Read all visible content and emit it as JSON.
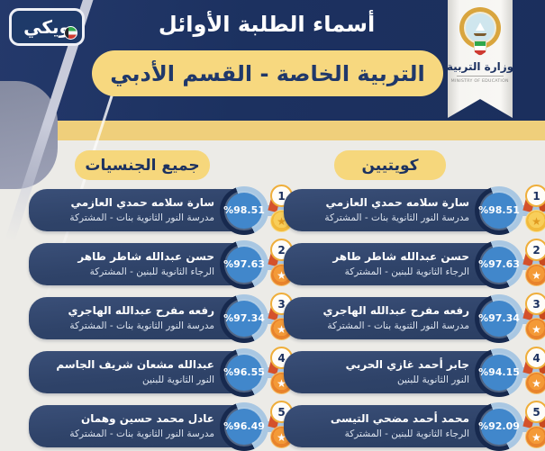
{
  "page": {
    "background": "#ecebe7",
    "navy": "#1c3160",
    "yellow": "#f2d17c",
    "blue_percent": "#4187cb",
    "medal_orange": "#e8832c",
    "medal_gold": "#f2ba3c"
  },
  "watermark_logo": {
    "text": "ويكي",
    "icon": "kuwait-flag-icon"
  },
  "header": {
    "title": "أسماء الطلبة الأوائل",
    "subtitle": "التربية الخاصة - القسم الأدبي"
  },
  "ministry_ribbon": {
    "emblem": "kuwait-coat-of-arms-icon",
    "name_ar": "وزارة التربية",
    "name_en": "MINISTRY OF EDUCATION"
  },
  "columns": {
    "right": {
      "title": "كويتيين",
      "entries": [
        {
          "rank": "1",
          "name": "سارة سلامه حمدي العازمي",
          "school": "مدرسة النور الثانوية بنات - المشتركة",
          "percent": "%98.51"
        },
        {
          "rank": "2",
          "name": "حسن عبدالله شاطر طاهر",
          "school": "الرجاء الثانوية للبنين - المشتركة",
          "percent": "%97.63"
        },
        {
          "rank": "3",
          "name": "رفعه مفرح عبدالله الهاجري",
          "school": "مدرسة النور الثنوية بنات - المشتركة",
          "percent": "%97.34"
        },
        {
          "rank": "4",
          "name": "جابر أحمد غازي الحربي",
          "school": "النور الثانوية للبنين",
          "percent": "%94.15"
        },
        {
          "rank": "5",
          "name": "محمد أحمد مضحي التيسى",
          "school": "الرجاء الثانوية للبنين - المشتركة",
          "percent": "%92.09"
        }
      ]
    },
    "left": {
      "title": "جميع الجنسيات",
      "entries": [
        {
          "rank": "1",
          "name": "سارة سلامه حمدي العازمي",
          "school": "مدرسة النور الثانوية بنات - المشتركة",
          "percent": "%98.51"
        },
        {
          "rank": "2",
          "name": "حسن عبدالله شاطر طاهر",
          "school": "الرجاء الثانوية للبنين - المشتركة",
          "percent": "%97.63"
        },
        {
          "rank": "3",
          "name": "رفعه مفرح عبدالله الهاجري",
          "school": "مدرسة النور الثانوية بنات - المشتركة",
          "percent": "%97.34"
        },
        {
          "rank": "4",
          "name": "عبدالله مشعان شريف الجاسم",
          "school": "النور الثانوية للبنين",
          "percent": "%96.55"
        },
        {
          "rank": "5",
          "name": "عادل محمد حسين وهمان",
          "school": "مدرسة النور الثانوية بنات - المشتركة",
          "percent": "%96.49"
        }
      ]
    }
  }
}
